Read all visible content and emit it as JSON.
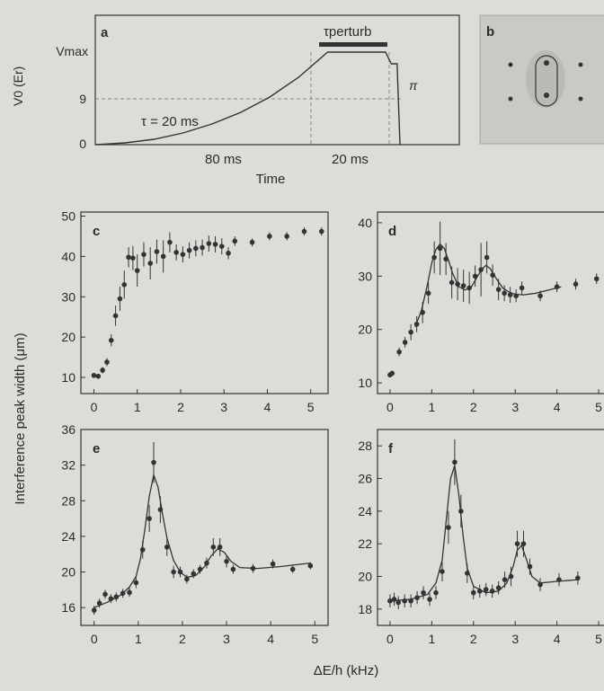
{
  "chart_data": [
    {
      "panel": "a",
      "type": "line",
      "xlabel": "Time",
      "ylabel": "V0 (Er)",
      "y_tick_labels": [
        "0",
        "9",
        "Vmax"
      ],
      "annotations": {
        "tau": "τ = 20 ms",
        "ramp_duration": "80 ms",
        "hold_duration": "20 ms",
        "perturb": "τperturb",
        "pi": "π"
      },
      "x": [
        0,
        10,
        20,
        30,
        40,
        50,
        60,
        70,
        80,
        100,
        102,
        104,
        105
      ],
      "y": [
        0,
        0.2,
        0.6,
        1.3,
        2.3,
        3.6,
        5.3,
        7.5,
        10.3,
        10.3,
        9,
        9,
        0
      ],
      "ylim": [
        0,
        12.5
      ]
    },
    {
      "panel": "b",
      "type": "image",
      "description_label": "b"
    },
    {
      "panel": "c",
      "type": "scatter",
      "xlim": [
        -0.3,
        5.4
      ],
      "ylim": [
        6,
        51
      ],
      "x_ticks": [
        0,
        1,
        2,
        3,
        4,
        5
      ],
      "y_ticks": [
        10,
        20,
        30,
        40,
        50
      ],
      "x": [
        0.0,
        0.1,
        0.2,
        0.3,
        0.4,
        0.5,
        0.6,
        0.7,
        0.8,
        0.9,
        1.0,
        1.15,
        1.3,
        1.45,
        1.6,
        1.75,
        1.9,
        2.05,
        2.2,
        2.35,
        2.5,
        2.65,
        2.8,
        2.95,
        3.1,
        3.25,
        3.65,
        4.05,
        4.45,
        4.85,
        5.25
      ],
      "y": [
        10.5,
        10.3,
        11.8,
        13.8,
        19.2,
        25.3,
        29.5,
        33.0,
        39.8,
        39.6,
        36.5,
        40.5,
        38.3,
        41.2,
        40.0,
        43.5,
        41.0,
        40.5,
        41.5,
        42.0,
        42.2,
        43.2,
        43.0,
        42.5,
        40.8,
        43.8,
        43.5,
        45.0,
        45.0,
        46.2,
        46.2
      ],
      "yerr": [
        0.6,
        0.6,
        0.8,
        1,
        1.5,
        2.5,
        3,
        3.5,
        2.5,
        3,
        4,
        3,
        4,
        3,
        4,
        2.5,
        2,
        2,
        2,
        2,
        2,
        2,
        2,
        2,
        1.5,
        1.2,
        1,
        1,
        1,
        1,
        1
      ]
    },
    {
      "panel": "d",
      "type": "scatter",
      "xlim": [
        -0.3,
        5.3
      ],
      "ylim": [
        8,
        42
      ],
      "x_ticks": [
        0,
        1,
        2,
        3,
        4,
        5
      ],
      "y_ticks": [
        10,
        20,
        30,
        40
      ],
      "x": [
        0.0,
        0.05,
        0.22,
        0.36,
        0.5,
        0.64,
        0.78,
        0.92,
        1.06,
        1.2,
        1.34,
        1.48,
        1.62,
        1.76,
        1.9,
        2.04,
        2.18,
        2.32,
        2.46,
        2.6,
        2.74,
        2.88,
        3.02,
        3.16,
        3.6,
        4.0,
        4.45,
        4.95
      ],
      "y": [
        11.5,
        11.8,
        15.8,
        17.6,
        19.5,
        21.0,
        23.2,
        26.8,
        33.5,
        35.2,
        33.2,
        28.8,
        28.5,
        28.2,
        27.8,
        30.0,
        31.2,
        33.5,
        30.2,
        27.5,
        26.8,
        26.5,
        26.3,
        27.8,
        26.3,
        28.0,
        28.5,
        29.5
      ],
      "yerr": [
        0.5,
        0.5,
        0.8,
        1.0,
        1.5,
        1.5,
        2,
        2,
        3,
        5,
        3,
        3,
        3,
        3,
        3,
        2,
        5,
        3,
        2,
        2,
        1.5,
        1.5,
        1.2,
        1.2,
        1,
        1,
        1,
        1
      ],
      "fit_x": [
        0.6,
        0.75,
        0.9,
        1.0,
        1.1,
        1.2,
        1.3,
        1.4,
        1.5,
        1.65,
        1.8,
        1.95,
        2.1,
        2.2,
        2.3,
        2.4,
        2.55,
        2.7,
        2.85,
        3.0,
        3.2,
        3.5,
        3.8,
        4.1
      ],
      "fit_y": [
        20.5,
        23.5,
        28.5,
        32.5,
        35.0,
        36.0,
        35.2,
        33.0,
        30.5,
        28.0,
        27.4,
        28.0,
        30.0,
        31.3,
        32.0,
        31.4,
        29.5,
        27.8,
        27.0,
        26.6,
        26.5,
        26.8,
        27.4,
        28.0
      ]
    },
    {
      "panel": "e",
      "type": "scatter",
      "xlim": [
        -0.3,
        5.3
      ],
      "ylim": [
        14,
        36
      ],
      "x_ticks": [
        0,
        1,
        2,
        3,
        4,
        5
      ],
      "y_ticks": [
        16,
        20,
        24,
        28,
        32,
        36
      ],
      "x": [
        0.0,
        0.12,
        0.25,
        0.38,
        0.5,
        0.65,
        0.8,
        0.95,
        1.1,
        1.25,
        1.35,
        1.5,
        1.65,
        1.8,
        1.95,
        2.1,
        2.25,
        2.4,
        2.55,
        2.7,
        2.85,
        3.0,
        3.15,
        3.6,
        4.05,
        4.5,
        4.9
      ],
      "y": [
        15.7,
        16.5,
        17.5,
        17.0,
        17.2,
        17.6,
        17.7,
        18.8,
        22.5,
        26.0,
        32.3,
        27.0,
        22.8,
        20.0,
        20.0,
        19.2,
        19.8,
        20.3,
        21.0,
        22.8,
        22.8,
        21.2,
        20.3,
        20.4,
        20.9,
        20.3,
        20.7
      ],
      "yerr": [
        0.5,
        0.5,
        0.5,
        0.5,
        0.5,
        0.5,
        0.5,
        0.6,
        1.0,
        1.5,
        2.3,
        1.5,
        1.0,
        0.7,
        0.6,
        0.5,
        0.5,
        0.5,
        0.6,
        1.0,
        1.0,
        0.7,
        0.5,
        0.5,
        0.5,
        0.4,
        0.4
      ],
      "fit_x": [
        0.0,
        0.3,
        0.6,
        0.8,
        0.95,
        1.05,
        1.15,
        1.25,
        1.35,
        1.45,
        1.55,
        1.65,
        1.8,
        1.95,
        2.1,
        2.3,
        2.5,
        2.65,
        2.8,
        2.95,
        3.1,
        3.3,
        3.7,
        4.2,
        4.9
      ],
      "fit_y": [
        16.0,
        16.6,
        17.4,
        18.3,
        19.5,
        21.5,
        24.8,
        28.5,
        30.9,
        29.5,
        26.5,
        23.8,
        21.3,
        20.0,
        19.4,
        19.6,
        20.6,
        21.8,
        22.6,
        22.2,
        21.2,
        20.5,
        20.4,
        20.6,
        21.0
      ]
    },
    {
      "panel": "f",
      "type": "scatter",
      "xlim": [
        -0.3,
        5.3
      ],
      "ylim": [
        17,
        29
      ],
      "x_ticks": [
        0,
        1,
        2,
        3,
        4,
        5
      ],
      "y_ticks": [
        18,
        20,
        22,
        24,
        26,
        28
      ],
      "x": [
        0.0,
        0.1,
        0.2,
        0.35,
        0.5,
        0.65,
        0.8,
        0.95,
        1.1,
        1.25,
        1.4,
        1.55,
        1.7,
        1.85,
        2.0,
        2.15,
        2.3,
        2.45,
        2.6,
        2.75,
        2.9,
        3.05,
        3.2,
        3.35,
        3.6,
        4.05,
        4.5
      ],
      "y": [
        18.5,
        18.6,
        18.4,
        18.5,
        18.5,
        18.7,
        19.0,
        18.6,
        19.0,
        20.3,
        23.0,
        27.0,
        24.0,
        20.2,
        19.0,
        19.1,
        19.2,
        19.1,
        19.3,
        19.8,
        20.0,
        22.0,
        22.0,
        20.6,
        19.5,
        19.8,
        19.9
      ],
      "yerr": [
        0.4,
        0.4,
        0.4,
        0.4,
        0.4,
        0.4,
        0.4,
        0.4,
        0.4,
        0.6,
        1.0,
        1.4,
        1.0,
        0.6,
        0.4,
        0.4,
        0.4,
        0.4,
        0.4,
        0.5,
        0.6,
        0.8,
        0.8,
        0.5,
        0.4,
        0.4,
        0.4
      ],
      "fit_x": [
        0.0,
        0.5,
        0.9,
        1.1,
        1.25,
        1.35,
        1.45,
        1.55,
        1.65,
        1.75,
        1.85,
        2.0,
        2.3,
        2.6,
        2.8,
        2.95,
        3.05,
        3.15,
        3.25,
        3.4,
        3.6,
        4.0,
        4.5
      ],
      "fit_y": [
        18.5,
        18.6,
        18.9,
        19.6,
        21.0,
        23.5,
        26.0,
        26.8,
        25.0,
        22.5,
        20.5,
        19.4,
        19.0,
        19.1,
        19.6,
        20.6,
        21.6,
        21.9,
        21.2,
        20.0,
        19.6,
        19.7,
        19.8
      ]
    }
  ],
  "shared": {
    "ylabel": "Interference peak width (μm)",
    "xlabel": "ΔE/h (kHz)"
  }
}
